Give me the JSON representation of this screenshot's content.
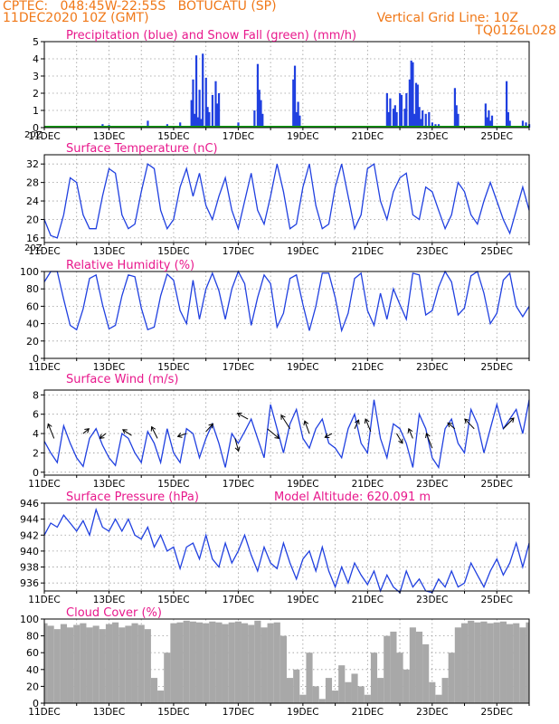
{
  "header": {
    "left_line1": "CPTEC:   048:45W-22:55S   BOTUCATU (SP)",
    "left_line2": "11DEC2020 10Z (GMT)",
    "right_line1": "Vertical Grid Line: 10Z",
    "right_line2": "TQ0126L028"
  },
  "colors": {
    "header": "#f07818",
    "title": "#e8188c",
    "series": "#2040e0",
    "snow": "#10a010",
    "cloud": "#a8a8a8",
    "wind_arrow": "#000000",
    "grid": "#9a9a9a"
  },
  "x_axis": {
    "day_start": 11,
    "day_end": 26,
    "tick_labels": [
      "11DEC",
      "13DEC",
      "15DEC",
      "17DEC",
      "19DEC",
      "21DEC",
      "23DEC",
      "25DEC"
    ],
    "tick_days": [
      11,
      13,
      15,
      17,
      19,
      21,
      23,
      25
    ],
    "stray_label": "20Z"
  },
  "chart_data": [
    {
      "type": "bar",
      "title": "Precipitation (blue) and Snow Fall (green) (mm/h)",
      "yticks": [
        0,
        1,
        2,
        3,
        4,
        5
      ],
      "ylim": [
        0,
        5
      ],
      "series": [
        {
          "name": "Precipitation",
          "x": [
            12.8,
            13.0,
            14.2,
            14.8,
            15.2,
            15.55,
            15.6,
            15.65,
            15.7,
            15.75,
            15.8,
            15.85,
            15.9,
            16.0,
            16.05,
            16.1,
            16.2,
            16.3,
            16.35,
            16.4,
            17.0,
            17.5,
            17.6,
            17.65,
            17.7,
            17.75,
            18.7,
            18.75,
            18.8,
            18.85,
            18.9,
            21.6,
            21.65,
            21.7,
            21.8,
            21.85,
            21.9,
            22.0,
            22.05,
            22.15,
            22.2,
            22.3,
            22.35,
            22.4,
            22.45,
            22.5,
            22.55,
            22.6,
            22.65,
            22.7,
            22.8,
            22.9,
            23.0,
            23.1,
            23.2,
            23.7,
            23.75,
            23.8,
            24.65,
            24.7,
            24.75,
            24.8,
            24.85,
            25.3,
            25.35,
            25.4,
            25.8,
            25.9,
            26.0
          ],
          "values": [
            0.2,
            0.15,
            0.4,
            0.2,
            0.3,
            1.6,
            2.8,
            0.8,
            4.2,
            0.6,
            2.2,
            0.5,
            4.3,
            2.9,
            1.2,
            0.9,
            1.9,
            2.7,
            1.4,
            2.0,
            0.3,
            1.0,
            3.7,
            2.2,
            1.6,
            0.8,
            2.8,
            3.6,
            0.9,
            1.5,
            0.7,
            2.0,
            0.9,
            1.7,
            1.1,
            1.3,
            0.9,
            2.0,
            1.9,
            1.1,
            2.0,
            2.8,
            3.9,
            3.8,
            0.8,
            2.6,
            2.5,
            1.2,
            0.5,
            1.0,
            0.8,
            0.9,
            0.3,
            0.2,
            0.2,
            2.3,
            1.3,
            0.8,
            1.4,
            0.6,
            1.0,
            0.4,
            0.7,
            2.7,
            0.9,
            0.4,
            0.4,
            0.3,
            0.2
          ]
        },
        {
          "name": "Snow Fall",
          "x": [
            11.0,
            26.0
          ],
          "values": [
            0,
            0
          ]
        }
      ]
    },
    {
      "type": "line",
      "title": "Surface Temperature (nC)",
      "yticks": [
        16,
        20,
        24,
        28,
        32
      ],
      "ylim": [
        15,
        34
      ],
      "x": [
        11.0,
        11.2,
        11.4,
        11.6,
        11.8,
        12.0,
        12.2,
        12.4,
        12.6,
        12.8,
        13.0,
        13.2,
        13.4,
        13.6,
        13.8,
        14.0,
        14.2,
        14.4,
        14.6,
        14.8,
        15.0,
        15.2,
        15.4,
        15.6,
        15.8,
        16.0,
        16.2,
        16.4,
        16.6,
        16.8,
        17.0,
        17.2,
        17.4,
        17.6,
        17.8,
        18.0,
        18.2,
        18.4,
        18.6,
        18.8,
        19.0,
        19.2,
        19.4,
        19.6,
        19.8,
        20.0,
        20.2,
        20.4,
        20.6,
        20.8,
        21.0,
        21.2,
        21.4,
        21.6,
        21.8,
        22.0,
        22.2,
        22.4,
        22.6,
        22.8,
        23.0,
        23.2,
        23.4,
        23.6,
        23.8,
        24.0,
        24.2,
        24.4,
        24.6,
        24.8,
        25.0,
        25.2,
        25.4,
        25.6,
        25.8,
        26.0
      ],
      "values": [
        20,
        16.5,
        16,
        21,
        29,
        28,
        21,
        18,
        18,
        25,
        31,
        30,
        21,
        18,
        19,
        26,
        32,
        31,
        22,
        18,
        20,
        27,
        31,
        25,
        30,
        23,
        20,
        25,
        29,
        22,
        18,
        24,
        30,
        22,
        19,
        25,
        32,
        26,
        18,
        19,
        27,
        32,
        23,
        18,
        19,
        27,
        32,
        25,
        18,
        21,
        31,
        32,
        24,
        20,
        26,
        29,
        30,
        21,
        20,
        27,
        26,
        22,
        18,
        21,
        28,
        26,
        21,
        19,
        24,
        28,
        24,
        20,
        17,
        22,
        27,
        22
      ]
    },
    {
      "type": "line",
      "title": "Relative Humidity (%)",
      "yticks": [
        0,
        20,
        40,
        60,
        80,
        100
      ],
      "ylim": [
        0,
        100
      ],
      "x": [
        11.0,
        11.2,
        11.4,
        11.6,
        11.8,
        12.0,
        12.2,
        12.4,
        12.6,
        12.8,
        13.0,
        13.2,
        13.4,
        13.6,
        13.8,
        14.0,
        14.2,
        14.4,
        14.6,
        14.8,
        15.0,
        15.2,
        15.4,
        15.6,
        15.8,
        16.0,
        16.2,
        16.4,
        16.6,
        16.8,
        17.0,
        17.2,
        17.4,
        17.6,
        17.8,
        18.0,
        18.2,
        18.4,
        18.6,
        18.8,
        19.0,
        19.2,
        19.4,
        19.6,
        19.8,
        20.0,
        20.2,
        20.4,
        20.6,
        20.8,
        21.0,
        21.2,
        21.4,
        21.6,
        21.8,
        22.0,
        22.2,
        22.4,
        22.6,
        22.8,
        23.0,
        23.2,
        23.4,
        23.6,
        23.8,
        24.0,
        24.2,
        24.4,
        24.6,
        24.8,
        25.0,
        25.2,
        25.4,
        25.6,
        25.8,
        26.0
      ],
      "values": [
        88,
        100,
        100,
        68,
        38,
        33,
        57,
        92,
        96,
        62,
        34,
        38,
        72,
        96,
        94,
        58,
        33,
        36,
        72,
        97,
        90,
        55,
        40,
        90,
        45,
        80,
        98,
        78,
        45,
        80,
        100,
        86,
        38,
        70,
        96,
        86,
        36,
        52,
        92,
        96,
        62,
        32,
        60,
        98,
        98,
        70,
        32,
        52,
        92,
        98,
        55,
        38,
        75,
        45,
        80,
        62,
        45,
        98,
        96,
        50,
        55,
        82,
        100,
        88,
        50,
        58,
        95,
        100,
        75,
        40,
        52,
        90,
        98,
        60,
        48,
        60
      ]
    },
    {
      "type": "line",
      "title": "Surface Wind (m/s)",
      "yticks": [
        0,
        2,
        4,
        6,
        8
      ],
      "ylim": [
        -0.3,
        8.5
      ],
      "x": [
        11.0,
        11.2,
        11.4,
        11.6,
        11.8,
        12.0,
        12.2,
        12.4,
        12.6,
        12.8,
        13.0,
        13.2,
        13.4,
        13.6,
        13.8,
        14.0,
        14.2,
        14.4,
        14.6,
        14.8,
        15.0,
        15.2,
        15.4,
        15.6,
        15.8,
        16.0,
        16.2,
        16.4,
        16.6,
        16.8,
        17.0,
        17.2,
        17.4,
        17.6,
        17.8,
        18.0,
        18.2,
        18.4,
        18.6,
        18.8,
        19.0,
        19.2,
        19.4,
        19.6,
        19.8,
        20.0,
        20.2,
        20.4,
        20.6,
        20.8,
        21.0,
        21.2,
        21.4,
        21.6,
        21.8,
        22.0,
        22.2,
        22.4,
        22.6,
        22.8,
        23.0,
        23.2,
        23.4,
        23.6,
        23.8,
        24.0,
        24.2,
        24.4,
        24.6,
        24.8,
        25.0,
        25.2,
        25.4,
        25.6,
        25.8,
        26.0
      ],
      "values": [
        3.2,
        2.0,
        1.0,
        4.8,
        3.0,
        1.5,
        0.6,
        3.5,
        4.5,
        2.8,
        1.5,
        0.7,
        4.0,
        3.5,
        2.0,
        1.0,
        4.2,
        3.0,
        1.0,
        4.5,
        2.0,
        1.0,
        4.5,
        4.0,
        1.5,
        3.5,
        5.0,
        3.0,
        0.5,
        4.0,
        3.0,
        4.2,
        5.5,
        3.5,
        1.5,
        7.0,
        4.5,
        2.0,
        5.0,
        6.5,
        3.5,
        2.5,
        4.5,
        5.5,
        3.0,
        2.5,
        1.5,
        4.5,
        6.0,
        3.0,
        2.0,
        7.5,
        3.5,
        1.5,
        5.0,
        4.5,
        3.0,
        0.5,
        6.0,
        4.5,
        1.5,
        0.5,
        4.5,
        5.5,
        3.0,
        2.0,
        6.5,
        5.0,
        2.0,
        4.5,
        7.0,
        4.5,
        5.5,
        6.5,
        4.0,
        7.5
      ]
    },
    {
      "type": "line",
      "title": "Surface Pressure (hPa)",
      "annotation": "Model Altitude: 620.091 m",
      "yticks": [
        936,
        938,
        940,
        942,
        944,
        946
      ],
      "ylim": [
        935,
        946
      ],
      "x": [
        11.0,
        11.2,
        11.4,
        11.6,
        11.8,
        12.0,
        12.2,
        12.4,
        12.6,
        12.8,
        13.0,
        13.2,
        13.4,
        13.6,
        13.8,
        14.0,
        14.2,
        14.4,
        14.6,
        14.8,
        15.0,
        15.2,
        15.4,
        15.6,
        15.8,
        16.0,
        16.2,
        16.4,
        16.6,
        16.8,
        17.0,
        17.2,
        17.4,
        17.6,
        17.8,
        18.0,
        18.2,
        18.4,
        18.6,
        18.8,
        19.0,
        19.2,
        19.4,
        19.6,
        19.8,
        20.0,
        20.2,
        20.4,
        20.6,
        20.8,
        21.0,
        21.2,
        21.4,
        21.6,
        21.8,
        22.0,
        22.2,
        22.4,
        22.6,
        22.8,
        23.0,
        23.2,
        23.4,
        23.6,
        23.8,
        24.0,
        24.2,
        24.4,
        24.6,
        24.8,
        25.0,
        25.2,
        25.4,
        25.6,
        25.8,
        26.0
      ],
      "values": [
        942.0,
        943.5,
        943.0,
        944.5,
        943.5,
        942.5,
        943.8,
        942.0,
        945.2,
        943.0,
        942.5,
        944.0,
        942.5,
        944.0,
        942.0,
        941.5,
        943.0,
        940.5,
        942.0,
        940.0,
        940.5,
        937.8,
        940.5,
        941.0,
        939.0,
        942.0,
        939.0,
        938.0,
        941.0,
        938.5,
        940.0,
        942.0,
        939.5,
        937.5,
        940.5,
        938.5,
        937.8,
        941.0,
        938.5,
        936.5,
        939.0,
        940.0,
        937.5,
        940.5,
        937.5,
        935.5,
        938.0,
        936.0,
        938.5,
        937.0,
        935.8,
        937.5,
        935.0,
        937.0,
        935.5,
        934.8,
        937.5,
        935.5,
        936.5,
        935.0,
        934.8,
        936.5,
        935.5,
        937.5,
        935.5,
        936.0,
        938.5,
        937.0,
        935.5,
        937.5,
        939.0,
        937.0,
        938.5,
        941.0,
        938.0,
        941.0
      ]
    },
    {
      "type": "bar",
      "title": "Cloud Cover (%)",
      "yticks": [
        0,
        20,
        40,
        60,
        80,
        100
      ],
      "ylim": [
        0,
        100
      ],
      "x": [
        11.0,
        11.2,
        11.4,
        11.6,
        11.8,
        12.0,
        12.2,
        12.4,
        12.6,
        12.8,
        13.0,
        13.2,
        13.4,
        13.6,
        13.8,
        14.0,
        14.2,
        14.4,
        14.6,
        14.8,
        15.0,
        15.2,
        15.4,
        15.6,
        15.8,
        16.0,
        16.2,
        16.4,
        16.6,
        16.8,
        17.0,
        17.2,
        17.4,
        17.6,
        17.8,
        18.0,
        18.2,
        18.4,
        18.6,
        18.8,
        19.0,
        19.2,
        19.4,
        19.6,
        19.8,
        20.0,
        20.2,
        20.4,
        20.6,
        20.8,
        21.0,
        21.2,
        21.4,
        21.6,
        21.8,
        22.0,
        22.2,
        22.4,
        22.6,
        22.8,
        23.0,
        23.2,
        23.4,
        23.6,
        23.8,
        24.0,
        24.2,
        24.4,
        24.6,
        24.8,
        25.0,
        25.2,
        25.4,
        25.6,
        25.8,
        26.0
      ],
      "values": [
        95,
        92,
        88,
        94,
        90,
        93,
        95,
        90,
        92,
        88,
        94,
        96,
        90,
        92,
        95,
        93,
        88,
        30,
        15,
        60,
        95,
        96,
        98,
        97,
        96,
        95,
        97,
        96,
        94,
        96,
        97,
        95,
        93,
        98,
        90,
        95,
        96,
        80,
        30,
        40,
        10,
        60,
        20,
        5,
        30,
        15,
        45,
        25,
        35,
        20,
        10,
        60,
        30,
        80,
        85,
        60,
        40,
        90,
        85,
        70,
        25,
        10,
        30,
        60,
        90,
        95,
        98,
        96,
        97,
        95,
        96,
        97,
        94,
        95,
        90,
        96
      ]
    }
  ],
  "wind_vectors": {
    "x": [
      11.3,
      12.2,
      12.9,
      13.7,
      14.5,
      15.4,
      16.0,
      16.9,
      17.3,
      17.9,
      18.6,
      19.2,
      19.9,
      20.6,
      21.1,
      21.9,
      22.4,
      23.0,
      23.7,
      24.3,
      25.2
    ],
    "y": [
      3.5,
      4.0,
      4.0,
      3.8,
      3.5,
      4.0,
      4.2,
      3.5,
      5.5,
      4.5,
      4.5,
      4.0,
      4.0,
      4.5,
      4.2,
      4.0,
      3.5,
      2.5,
      4.5,
      4.5,
      4.5
    ],
    "u": [
      -1.0,
      1.0,
      -1.0,
      -1.5,
      -1.0,
      -1.5,
      1.2,
      0.6,
      -1.8,
      2.0,
      -1.5,
      -0.8,
      -1.2,
      0.7,
      -0.9,
      1.0,
      -0.7,
      -1.0,
      -1.2,
      -1.6,
      1.8
    ],
    "v": [
      1.5,
      0.5,
      -0.5,
      0.6,
      1.2,
      -0.3,
      0.8,
      -1.3,
      0.6,
      -1.0,
      1.4,
      1.3,
      -0.4,
      0.9,
      1.3,
      -1.0,
      1.0,
      1.5,
      0.6,
      1.0,
      1.1
    ]
  }
}
